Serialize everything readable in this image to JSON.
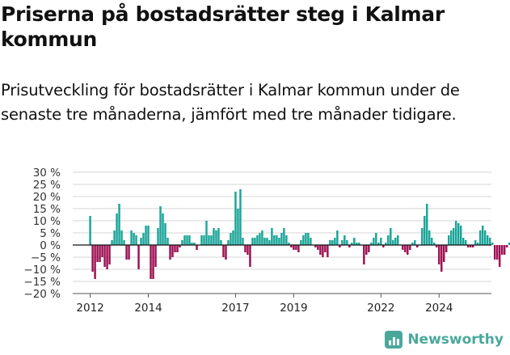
{
  "header": {
    "title": "Priserna på bostadsrätter steg i Kalmar kommun",
    "subtitle": "Prisutveckling för bostadsrätter i Kalmar kommun under de senaste tre månaderna, jämfört med tre månader tidigare."
  },
  "brand": {
    "name": "Newsworthy",
    "icon": "newsworthy-logo-icon",
    "color": "#4aa89b"
  },
  "chart_data": {
    "type": "bar",
    "xlabel": "",
    "ylabel": "",
    "ylim": [
      -20,
      30
    ],
    "yticks": [
      "30 %",
      "25 %",
      "20 %",
      "15 %",
      "10 %",
      "5 %",
      "0 %",
      "−5 %",
      "−10 %",
      "−15 %",
      "−20 %"
    ],
    "ytick_values": [
      30,
      25,
      20,
      15,
      10,
      5,
      0,
      -5,
      -10,
      -15,
      -20
    ],
    "xticks": [
      "2012",
      "2014",
      "2017",
      "2019",
      "2022",
      "2024"
    ],
    "xtick_positions": [
      2012.0,
      2014.0,
      2017.0,
      2019.0,
      2022.0,
      2024.0
    ],
    "xlim": [
      2011.4,
      2025.8
    ],
    "grid": true,
    "positive_color": "#1aa598",
    "negative_color": "#9c1152",
    "annotation": "5 %",
    "x_start": 2012.0,
    "x_step_months": 1,
    "values": [
      12,
      -11,
      -14,
      -7,
      -7,
      -5,
      -9,
      -10,
      -8,
      2,
      6,
      13,
      17,
      6,
      2,
      -6,
      -6,
      6,
      5,
      4,
      -10,
      3,
      5,
      8,
      8,
      -14,
      -14,
      -9,
      7,
      16,
      13,
      9,
      3,
      -6,
      -5,
      -3,
      -3,
      -1,
      2,
      4,
      4,
      4,
      1,
      1,
      -2,
      0,
      4,
      4,
      10,
      4,
      4,
      7,
      6,
      7,
      2,
      -5,
      -6,
      2,
      5,
      6,
      22,
      15,
      23,
      3,
      -3,
      -4,
      -9,
      3,
      3,
      4,
      5,
      6,
      3,
      3,
      2,
      7,
      4,
      4,
      3,
      5,
      7,
      4,
      1,
      -1,
      -2,
      -2,
      -3,
      2,
      4,
      5,
      5,
      3,
      0,
      -1,
      -2,
      -4,
      -5,
      -3,
      -5,
      2,
      2,
      3,
      6,
      -1,
      2,
      4,
      2,
      -1,
      1,
      3,
      1,
      1,
      0,
      -8,
      -4,
      -3,
      1,
      3,
      5,
      1,
      3,
      -1,
      1,
      4,
      7,
      2,
      3,
      4,
      0,
      -2,
      -3,
      -4,
      -2,
      1,
      2,
      -1,
      0,
      7,
      12,
      17,
      6,
      3,
      1,
      -1,
      -8,
      -11,
      -7,
      -3,
      4,
      6,
      7,
      10,
      9,
      8,
      3,
      2,
      -1,
      -1,
      -1,
      2,
      1,
      6,
      8,
      6,
      4,
      3,
      1,
      -6,
      -6,
      -9,
      -4,
      -4,
      -1,
      1,
      3,
      -3,
      -2,
      4,
      9,
      -1,
      -5,
      -8,
      -12,
      -9,
      -5,
      -2,
      1,
      1,
      -2,
      5,
      4,
      4,
      -11,
      1,
      -5,
      1,
      2,
      7,
      3,
      -3,
      7,
      8,
      4,
      -6,
      1,
      1,
      1,
      4,
      -7,
      -5,
      -4,
      -3,
      0,
      5,
      5,
      5
    ]
  }
}
